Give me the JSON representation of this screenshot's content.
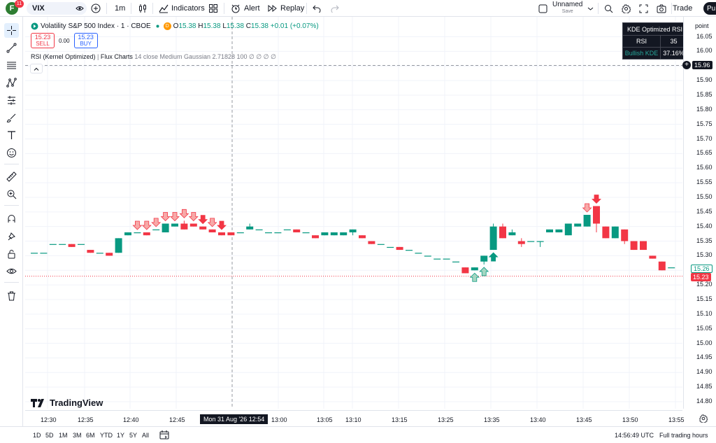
{
  "toolbar": {
    "avatar_letter": "F",
    "notification_count": "11",
    "symbol": "VIX",
    "interval": "1m",
    "indicators_label": "Indicators",
    "alert_label": "Alert",
    "replay_label": "Replay",
    "layout_name": "Unnamed",
    "layout_status": "Save",
    "trade_label": "Trade",
    "publish_label": "Pu"
  },
  "legend": {
    "title": "Volatility S&P 500 Index · 1 · CBOE",
    "o_label": "O",
    "o": "15.38",
    "h_label": "H",
    "h": "15.38",
    "l_label": "L",
    "l": "15.38",
    "c_label": "C",
    "c": "15.38",
    "change": "+0.01 (+0.07%)"
  },
  "order": {
    "sell_price": "15.23",
    "sell_label": "SELL",
    "spread": "0.00",
    "buy_price": "15.23",
    "buy_label": "BUY"
  },
  "indicator": {
    "name": "RSI (Kernel Optimized)",
    "author": "Flux Charts",
    "params": "14 close Medium Gaussian 2.71828 100",
    "glyphs": "∅ ∅ ∅ ∅"
  },
  "kde_table": {
    "header": "KDE Optimized RSI",
    "rsi_label": "RSI",
    "rsi_value": "35",
    "kde_label": "Bullish KDE",
    "kde_value": "37.16%"
  },
  "price_axis": {
    "unit": "point",
    "labels": [
      "16.05",
      "16.00",
      "15.95",
      "15.90",
      "15.85",
      "15.80",
      "15.75",
      "15.70",
      "15.65",
      "15.60",
      "15.55",
      "15.50",
      "15.45",
      "15.40",
      "15.35",
      "15.30",
      "15.25",
      "15.20",
      "15.15",
      "15.10",
      "15.05",
      "15.00",
      "14.95",
      "14.90",
      "14.85",
      "14.80"
    ],
    "crosshair_price": "15.96",
    "bid_price": "15.26",
    "last_price": "15.23"
  },
  "time_axis": {
    "labels": [
      "12:30",
      "12:35",
      "12:40",
      "12:45",
      "13:00",
      "13:05",
      "13:10",
      "13:15",
      "13:25",
      "13:35",
      "13:40",
      "13:45",
      "13:50",
      "13:55"
    ],
    "crosshair_label": "Mon 31 Aug '26   12:54"
  },
  "bottom": {
    "ranges": [
      "1D",
      "5D",
      "1M",
      "3M",
      "6M",
      "YTD",
      "1Y",
      "5Y",
      "All"
    ],
    "clock": "14:56:49 UTC",
    "session": "Full trading hours"
  },
  "watermark": "TradingView",
  "colors": {
    "up": "#089981",
    "down": "#f23645",
    "bear_signal": "#f7a9a8",
    "bull_signal": "#a5d6c1",
    "accent": "#2962ff"
  },
  "chart_data": {
    "type": "candlestick",
    "x_unit": "time (1 minute)",
    "ylim": [
      14.78,
      16.07
    ],
    "candles": [
      {
        "t": "12:28",
        "o": 15.31,
        "h": 15.31,
        "l": 15.31,
        "c": 15.31
      },
      {
        "t": "12:29",
        "o": 15.31,
        "h": 15.31,
        "l": 15.31,
        "c": 15.31
      },
      {
        "t": "12:30",
        "o": 15.34,
        "h": 15.34,
        "l": 15.34,
        "c": 15.34
      },
      {
        "t": "12:31",
        "o": 15.34,
        "h": 15.34,
        "l": 15.34,
        "c": 15.34
      },
      {
        "t": "12:32",
        "o": 15.34,
        "h": 15.34,
        "l": 15.33,
        "c": 15.33
      },
      {
        "t": "12:33",
        "o": 15.34,
        "h": 15.34,
        "l": 15.34,
        "c": 15.34
      },
      {
        "t": "12:34",
        "o": 15.32,
        "h": 15.32,
        "l": 15.31,
        "c": 15.31
      },
      {
        "t": "12:35",
        "o": 15.31,
        "h": 15.31,
        "l": 15.31,
        "c": 15.31
      },
      {
        "t": "12:36",
        "o": 15.31,
        "h": 15.31,
        "l": 15.3,
        "c": 15.3
      },
      {
        "t": "12:37",
        "o": 15.31,
        "h": 15.36,
        "l": 15.31,
        "c": 15.36
      },
      {
        "t": "12:38",
        "o": 15.37,
        "h": 15.38,
        "l": 15.37,
        "c": 15.38
      },
      {
        "t": "12:39",
        "o": 15.38,
        "h": 15.38,
        "l": 15.38,
        "c": 15.38
      },
      {
        "t": "12:40",
        "o": 15.38,
        "h": 15.38,
        "l": 15.37,
        "c": 15.37
      },
      {
        "t": "12:41",
        "o": 15.39,
        "h": 15.39,
        "l": 15.39,
        "c": 15.39
      },
      {
        "t": "12:42",
        "o": 15.38,
        "h": 15.41,
        "l": 15.38,
        "c": 15.41
      },
      {
        "t": "12:43",
        "o": 15.4,
        "h": 15.41,
        "l": 15.4,
        "c": 15.41
      },
      {
        "t": "12:44",
        "o": 15.41,
        "h": 15.42,
        "l": 15.39,
        "c": 15.39
      },
      {
        "t": "12:45",
        "o": 15.41,
        "h": 15.41,
        "l": 15.4,
        "c": 15.4
      },
      {
        "t": "12:46",
        "o": 15.4,
        "h": 15.4,
        "l": 15.39,
        "c": 15.39
      },
      {
        "t": "12:47",
        "o": 15.39,
        "h": 15.39,
        "l": 15.38,
        "c": 15.38
      },
      {
        "t": "12:48",
        "o": 15.38,
        "h": 15.38,
        "l": 15.37,
        "c": 15.37
      },
      {
        "t": "12:49",
        "o": 15.38,
        "h": 15.38,
        "l": 15.37,
        "c": 15.37
      },
      {
        "t": "12:50",
        "o": 15.38,
        "h": 15.38,
        "l": 15.38,
        "c": 15.38
      },
      {
        "t": "12:51",
        "o": 15.39,
        "h": 15.41,
        "l": 15.39,
        "c": 15.4
      },
      {
        "t": "12:52",
        "o": 15.39,
        "h": 15.39,
        "l": 15.39,
        "c": 15.39
      },
      {
        "t": "12:53",
        "o": 15.38,
        "h": 15.38,
        "l": 15.38,
        "c": 15.38
      },
      {
        "t": "12:54",
        "o": 15.38,
        "h": 15.38,
        "l": 15.38,
        "c": 15.38
      },
      {
        "t": "12:55",
        "o": 15.39,
        "h": 15.39,
        "l": 15.39,
        "c": 15.39
      },
      {
        "t": "12:56",
        "o": 15.39,
        "h": 15.39,
        "l": 15.38,
        "c": 15.38
      },
      {
        "t": "12:57",
        "o": 15.38,
        "h": 15.38,
        "l": 15.38,
        "c": 15.38
      },
      {
        "t": "12:58",
        "o": 15.37,
        "h": 15.37,
        "l": 15.36,
        "c": 15.36
      },
      {
        "t": "12:59",
        "o": 15.37,
        "h": 15.38,
        "l": 15.37,
        "c": 15.38
      },
      {
        "t": "13:00",
        "o": 15.37,
        "h": 15.38,
        "l": 15.37,
        "c": 15.38
      },
      {
        "t": "13:01",
        "o": 15.37,
        "h": 15.38,
        "l": 15.37,
        "c": 15.38
      },
      {
        "t": "13:02",
        "o": 15.38,
        "h": 15.39,
        "l": 15.37,
        "c": 15.39
      },
      {
        "t": "13:03",
        "o": 15.37,
        "h": 15.37,
        "l": 15.36,
        "c": 15.36
      },
      {
        "t": "13:04",
        "o": 15.35,
        "h": 15.35,
        "l": 15.34,
        "c": 15.34
      },
      {
        "t": "13:05",
        "o": 15.34,
        "h": 15.34,
        "l": 15.34,
        "c": 15.34
      },
      {
        "t": "13:06",
        "o": 15.33,
        "h": 15.33,
        "l": 15.33,
        "c": 15.33
      },
      {
        "t": "13:07",
        "o": 15.33,
        "h": 15.33,
        "l": 15.32,
        "c": 15.32
      },
      {
        "t": "13:08",
        "o": 15.32,
        "h": 15.32,
        "l": 15.32,
        "c": 15.32
      },
      {
        "t": "13:09",
        "o": 15.31,
        "h": 15.31,
        "l": 15.31,
        "c": 15.31
      },
      {
        "t": "13:10",
        "o": 15.3,
        "h": 15.3,
        "l": 15.3,
        "c": 15.3
      },
      {
        "t": "13:11",
        "o": 15.29,
        "h": 15.29,
        "l": 15.29,
        "c": 15.29
      },
      {
        "t": "13:12",
        "o": 15.29,
        "h": 15.29,
        "l": 15.29,
        "c": 15.29
      },
      {
        "t": "13:13",
        "o": 15.28,
        "h": 15.28,
        "l": 15.28,
        "c": 15.28
      },
      {
        "t": "13:14",
        "o": 15.26,
        "h": 15.26,
        "l": 15.24,
        "c": 15.24
      },
      {
        "t": "13:15",
        "o": 15.25,
        "h": 15.26,
        "l": 15.25,
        "c": 15.26
      },
      {
        "t": "13:16",
        "o": 15.28,
        "h": 15.3,
        "l": 15.27,
        "c": 15.3
      },
      {
        "t": "13:17",
        "o": 15.32,
        "h": 15.41,
        "l": 15.32,
        "c": 15.4
      },
      {
        "t": "13:18",
        "o": 15.4,
        "h": 15.41,
        "l": 15.36,
        "c": 15.36
      },
      {
        "t": "13:19",
        "o": 15.37,
        "h": 15.39,
        "l": 15.37,
        "c": 15.38
      },
      {
        "t": "13:20",
        "o": 15.35,
        "h": 15.36,
        "l": 15.33,
        "c": 15.34
      },
      {
        "t": "13:21",
        "o": 15.35,
        "h": 15.35,
        "l": 15.35,
        "c": 15.35
      },
      {
        "t": "13:22",
        "o": 15.35,
        "h": 15.35,
        "l": 15.33,
        "c": 15.35
      },
      {
        "t": "13:23",
        "o": 15.38,
        "h": 15.39,
        "l": 15.38,
        "c": 15.39
      },
      {
        "t": "13:24",
        "o": 15.38,
        "h": 15.39,
        "l": 15.38,
        "c": 15.39
      },
      {
        "t": "13:25",
        "o": 15.37,
        "h": 15.41,
        "l": 15.37,
        "c": 15.41
      },
      {
        "t": "13:26",
        "o": 15.4,
        "h": 15.41,
        "l": 15.4,
        "c": 15.41
      },
      {
        "t": "13:27",
        "o": 15.4,
        "h": 15.44,
        "l": 15.4,
        "c": 15.44
      },
      {
        "t": "13:28",
        "o": 15.47,
        "h": 15.47,
        "l": 15.38,
        "c": 15.41
      },
      {
        "t": "13:29",
        "o": 15.4,
        "h": 15.4,
        "l": 15.36,
        "c": 15.36
      },
      {
        "t": "13:30",
        "o": 15.36,
        "h": 15.4,
        "l": 15.36,
        "c": 15.4
      },
      {
        "t": "13:31",
        "o": 15.39,
        "h": 15.39,
        "l": 15.34,
        "c": 15.35
      },
      {
        "t": "13:32",
        "o": 15.35,
        "h": 15.35,
        "l": 15.32,
        "c": 15.32
      },
      {
        "t": "13:33",
        "o": 15.35,
        "h": 15.35,
        "l": 15.32,
        "c": 15.32
      },
      {
        "t": "13:34",
        "o": 15.3,
        "h": 15.3,
        "l": 15.29,
        "c": 15.29
      },
      {
        "t": "13:35",
        "o": 15.28,
        "h": 15.28,
        "l": 15.25,
        "c": 15.25
      },
      {
        "t": "13:36",
        "o": 15.26,
        "h": 15.26,
        "l": 15.26,
        "c": 15.26
      }
    ],
    "signals": [
      {
        "type": "bearish",
        "t": "12:39"
      },
      {
        "type": "bearish",
        "t": "12:40"
      },
      {
        "type": "bearish",
        "t": "12:41"
      },
      {
        "type": "bearish",
        "t": "12:42"
      },
      {
        "type": "bearish",
        "t": "12:43"
      },
      {
        "type": "bearish",
        "t": "12:44"
      },
      {
        "type": "bearish",
        "t": "12:45"
      },
      {
        "type": "bearish-strong",
        "t": "12:46"
      },
      {
        "type": "bearish",
        "t": "12:47"
      },
      {
        "type": "bearish-strong",
        "t": "12:48"
      },
      {
        "type": "bullish",
        "t": "13:15"
      },
      {
        "type": "bullish",
        "t": "13:16"
      },
      {
        "type": "bullish-strong",
        "t": "13:17"
      },
      {
        "type": "bearish",
        "t": "13:27"
      },
      {
        "type": "bearish-strong",
        "t": "13:28"
      }
    ]
  }
}
